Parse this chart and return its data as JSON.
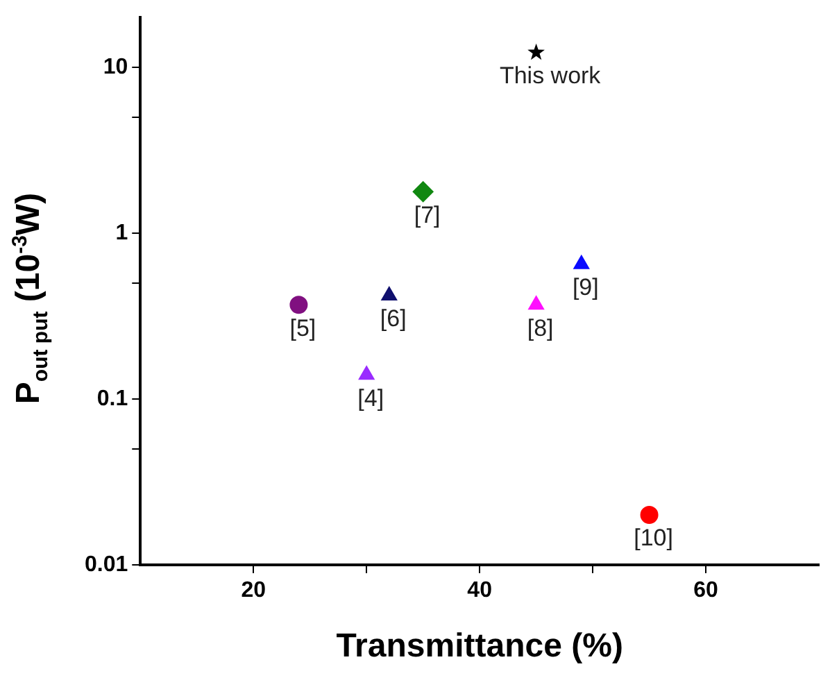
{
  "chart_data": {
    "type": "scatter",
    "xlabel": "Transmittance (%)",
    "ylabel": "P$_{out put}$ (10$^{-3}$W)",
    "log": "y",
    "grid": false,
    "legend": false,
    "xlim": [
      10,
      70
    ],
    "xticks": [
      20,
      {
        "value": 30,
        "label": null
      },
      40,
      {
        "value": 50,
        "label": null
      },
      60
    ],
    "ylim": [
      0.01,
      20
    ],
    "yticks": [
      0.01,
      {
        "value": 0.05,
        "label": null
      },
      0.1,
      {
        "value": 0.5,
        "label": null
      },
      1,
      {
        "value": 5,
        "label": null
      },
      10
    ],
    "series": [
      {
        "name": "This work",
        "color": "#000000",
        "marker": "star",
        "x": [
          45
        ],
        "values": [
          12.3
        ]
      },
      {
        "name": "[7]",
        "color": "#118811",
        "marker": "diamond",
        "x": [
          35
        ],
        "values": [
          1.78
        ]
      },
      {
        "name": "[5]",
        "color": "#801080",
        "marker": "circle",
        "x": [
          24
        ],
        "values": [
          0.37
        ]
      },
      {
        "name": "[6]",
        "color": "#10106e",
        "marker": "triangle",
        "x": [
          32
        ],
        "values": [
          0.42
        ]
      },
      {
        "name": "[4]",
        "color": "#9a2cff",
        "marker": "triangle",
        "x": [
          30
        ],
        "values": [
          0.14
        ]
      },
      {
        "name": "[8]",
        "color": "#ff10ff",
        "marker": "triangle",
        "x": [
          45
        ],
        "values": [
          0.37
        ]
      },
      {
        "name": "[9]",
        "color": "#0a0aff",
        "marker": "triangle",
        "x": [
          49
        ],
        "values": [
          0.65
        ]
      },
      {
        "name": "[10]",
        "color": "#ff0000",
        "marker": "circle",
        "x": [
          55
        ],
        "values": [
          0.02
        ]
      }
    ]
  }
}
